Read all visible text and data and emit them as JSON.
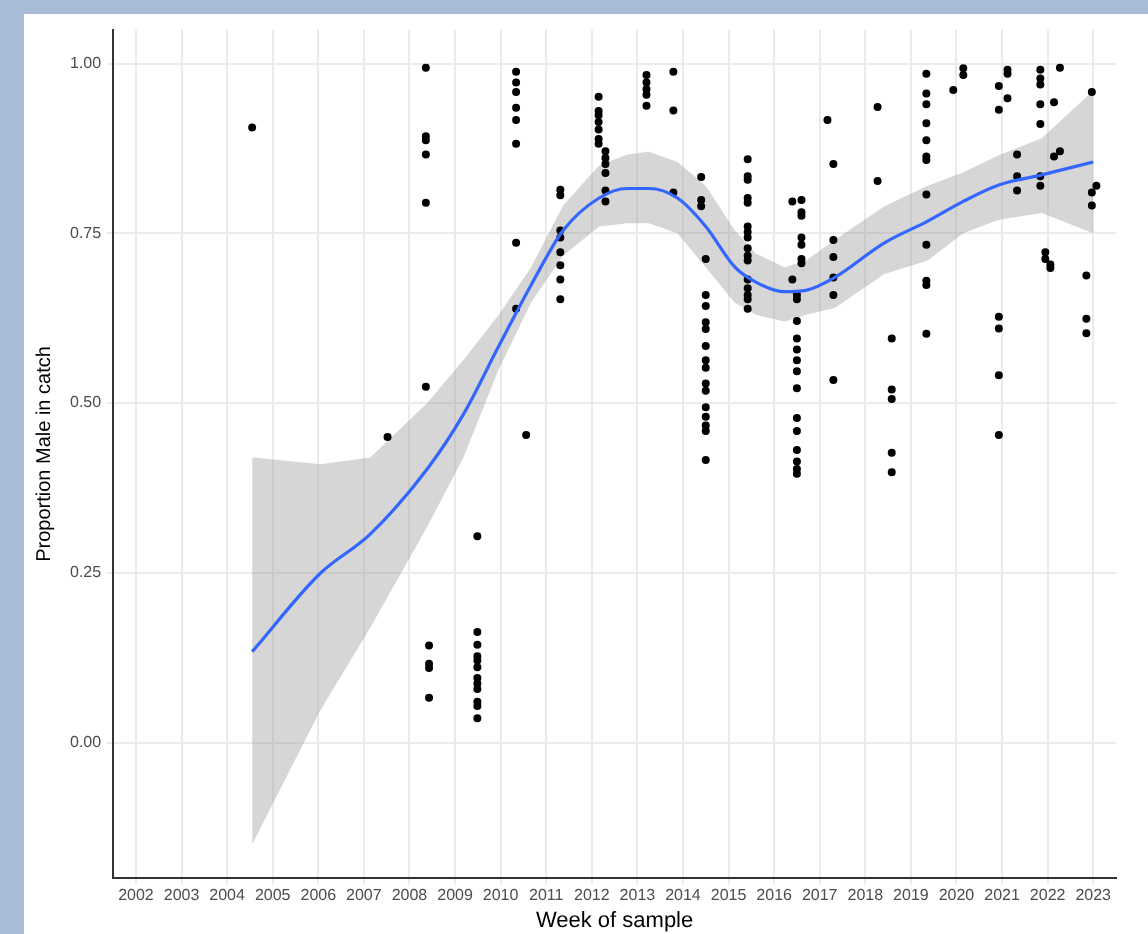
{
  "chart_data": {
    "type": "scatter",
    "xlabel": "Week of sample",
    "ylabel": "Proportion Male in catch",
    "xlim": [
      2001.5,
      2023.5
    ],
    "ylim": [
      -0.2,
      1.05
    ],
    "xticks": [
      2002,
      2003,
      2004,
      2005,
      2006,
      2007,
      2008,
      2009,
      2010,
      2011,
      2012,
      2013,
      2014,
      2015,
      2016,
      2017,
      2018,
      2019,
      2020,
      2021,
      2022,
      2023
    ],
    "yticks": [
      {
        "value": 0,
        "label": "0.00"
      },
      {
        "value": 0.25,
        "label": "0.25"
      },
      {
        "value": 0.5,
        "label": "0.50"
      },
      {
        "value": 0.75,
        "label": "0.75"
      },
      {
        "value": 1,
        "label": "1.00"
      }
    ],
    "grid": true,
    "legend": false,
    "marker": "circle",
    "series": [
      {
        "type": "scatter",
        "color": "#000000",
        "x": [
          2004.55,
          2007.52,
          2008.36,
          2008.36,
          2008.36,
          2008.36,
          2008.36,
          2008.36,
          2008.43,
          2008.43,
          2008.43,
          2008.43,
          2009.49,
          2009.49,
          2009.49,
          2009.49,
          2009.49,
          2009.49,
          2009.49,
          2009.49,
          2009.49,
          2009.49,
          2009.49,
          2009.49,
          2010.34,
          2010.34,
          2010.34,
          2010.34,
          2010.34,
          2010.34,
          2010.34,
          2010.34,
          2010.56,
          2011.31,
          2011.31,
          2011.31,
          2011.31,
          2011.31,
          2011.31,
          2011.31,
          2011.31,
          2012.15,
          2012.15,
          2012.15,
          2012.15,
          2012.15,
          2012.15,
          2012.15,
          2012.3,
          2012.3,
          2012.3,
          2012.3,
          2012.3,
          2012.3,
          2013.2,
          2013.2,
          2013.2,
          2013.2,
          2013.2,
          2013.79,
          2013.79,
          2013.79,
          2014.4,
          2014.4,
          2014.4,
          2014.5,
          2014.5,
          2014.5,
          2014.5,
          2014.5,
          2014.5,
          2014.5,
          2014.5,
          2014.5,
          2014.5,
          2014.5,
          2014.5,
          2014.5,
          2014.5,
          2014.5,
          2015.42,
          2015.42,
          2015.42,
          2015.42,
          2015.42,
          2015.42,
          2015.42,
          2015.42,
          2015.42,
          2015.42,
          2015.42,
          2015.42,
          2015.42,
          2015.42,
          2015.42,
          2015.42,
          2016.4,
          2016.6,
          2016.6,
          2016.6,
          2016.6,
          2016.6,
          2016.6,
          2016.6,
          2016.4,
          2016.5,
          2016.5,
          2016.5,
          2016.5,
          2016.5,
          2016.5,
          2016.5,
          2016.5,
          2016.5,
          2016.5,
          2016.5,
          2016.5,
          2016.5,
          2016.5,
          2017.17,
          2017.3,
          2017.3,
          2017.3,
          2017.3,
          2017.3,
          2017.3,
          2018.27,
          2018.27,
          2018.58,
          2018.58,
          2018.58,
          2018.58,
          2018.58,
          2019.34,
          2019.34,
          2019.34,
          2019.34,
          2019.34,
          2019.34,
          2019.34,
          2019.34,
          2019.34,
          2019.34,
          2019.34,
          2019.34,
          2019.93,
          2020.15,
          2020.15,
          2020.93,
          2020.93,
          2020.93,
          2020.93,
          2020.93,
          2020.93,
          2021.12,
          2021.12,
          2021.12,
          2021.33,
          2021.33,
          2021.33,
          2021.84,
          2021.84,
          2021.84,
          2021.84,
          2021.84,
          2021.84,
          2021.84,
          2021.95,
          2021.95,
          2022.06,
          2022.06,
          2022.14,
          2022.14,
          2022.27,
          2022.27,
          2022.85,
          2022.85,
          2022.85,
          2022.97,
          2022.97,
          2022.97,
          2023.07
        ],
        "values": [
          0.906,
          0.45,
          0.994,
          0.893,
          0.887,
          0.866,
          0.795,
          0.524,
          0.143,
          0.116,
          0.11,
          0.066,
          0.304,
          0.163,
          0.144,
          0.127,
          0.121,
          0.111,
          0.095,
          0.087,
          0.079,
          0.06,
          0.054,
          0.036,
          0.988,
          0.972,
          0.958,
          0.935,
          0.917,
          0.882,
          0.736,
          0.639,
          0.453,
          0.814,
          0.806,
          0.754,
          0.744,
          0.722,
          0.703,
          0.682,
          0.653,
          0.951,
          0.93,
          0.924,
          0.914,
          0.903,
          0.889,
          0.882,
          0.871,
          0.861,
          0.852,
          0.839,
          0.813,
          0.797,
          0.983,
          0.972,
          0.962,
          0.954,
          0.938,
          0.988,
          0.931,
          0.81,
          0.833,
          0.799,
          0.79,
          0.712,
          0.659,
          0.643,
          0.619,
          0.609,
          0.584,
          0.563,
          0.552,
          0.529,
          0.518,
          0.494,
          0.48,
          0.467,
          0.459,
          0.416,
          0.859,
          0.834,
          0.829,
          0.802,
          0.795,
          0.76,
          0.752,
          0.744,
          0.728,
          0.717,
          0.71,
          0.682,
          0.669,
          0.659,
          0.653,
          0.639,
          0.797,
          0.799,
          0.781,
          0.776,
          0.744,
          0.733,
          0.712,
          0.706,
          0.682,
          0.659,
          0.653,
          0.621,
          0.595,
          0.579,
          0.563,
          0.547,
          0.522,
          0.478,
          0.459,
          0.431,
          0.414,
          0.403,
          0.396,
          0.917,
          0.852,
          0.74,
          0.715,
          0.685,
          0.659,
          0.534,
          0.936,
          0.827,
          0.595,
          0.52,
          0.506,
          0.427,
          0.398,
          0.985,
          0.956,
          0.94,
          0.912,
          0.887,
          0.863,
          0.858,
          0.807,
          0.733,
          0.68,
          0.674,
          0.602,
          0.961,
          0.993,
          0.983,
          0.967,
          0.932,
          0.627,
          0.61,
          0.541,
          0.453,
          0.991,
          0.985,
          0.949,
          0.866,
          0.834,
          0.813,
          0.991,
          0.978,
          0.969,
          0.94,
          0.911,
          0.834,
          0.82,
          0.722,
          0.712,
          0.704,
          0.699,
          0.943,
          0.863,
          0.994,
          0.871,
          0.688,
          0.624,
          0.603,
          0.958,
          0.81,
          0.791,
          0.82
        ]
      },
      {
        "type": "line",
        "color": "#3366ff",
        "marker": "none",
        "x": [
          2004.55,
          2006.04,
          2007.14,
          2008.39,
          2009.18,
          2009.96,
          2010.67,
          2011.37,
          2012.16,
          2012.78,
          2013.25,
          2013.88,
          2014.5,
          2015.13,
          2015.6,
          2016.23,
          2016.7,
          2017.33,
          2018.42,
          2019.37,
          2020.15,
          2020.93,
          2021.87,
          2023.0
        ],
        "values": [
          0.134,
          0.249,
          0.307,
          0.403,
          0.483,
          0.584,
          0.674,
          0.754,
          0.802,
          0.816,
          0.816,
          0.802,
          0.76,
          0.701,
          0.678,
          0.664,
          0.666,
          0.685,
          0.736,
          0.768,
          0.797,
          0.821,
          0.836,
          0.855
        ],
        "lower": [
          -0.15,
          0.047,
          0.169,
          0.318,
          0.419,
          0.55,
          0.648,
          0.717,
          0.76,
          0.765,
          0.765,
          0.75,
          0.7,
          0.648,
          0.63,
          0.62,
          0.63,
          0.64,
          0.69,
          0.71,
          0.75,
          0.77,
          0.78,
          0.75
        ],
        "upper": [
          0.42,
          0.41,
          0.42,
          0.5,
          0.563,
          0.63,
          0.7,
          0.791,
          0.85,
          0.866,
          0.87,
          0.855,
          0.82,
          0.755,
          0.72,
          0.7,
          0.71,
          0.74,
          0.79,
          0.82,
          0.84,
          0.865,
          0.89,
          0.96
        ]
      }
    ]
  }
}
